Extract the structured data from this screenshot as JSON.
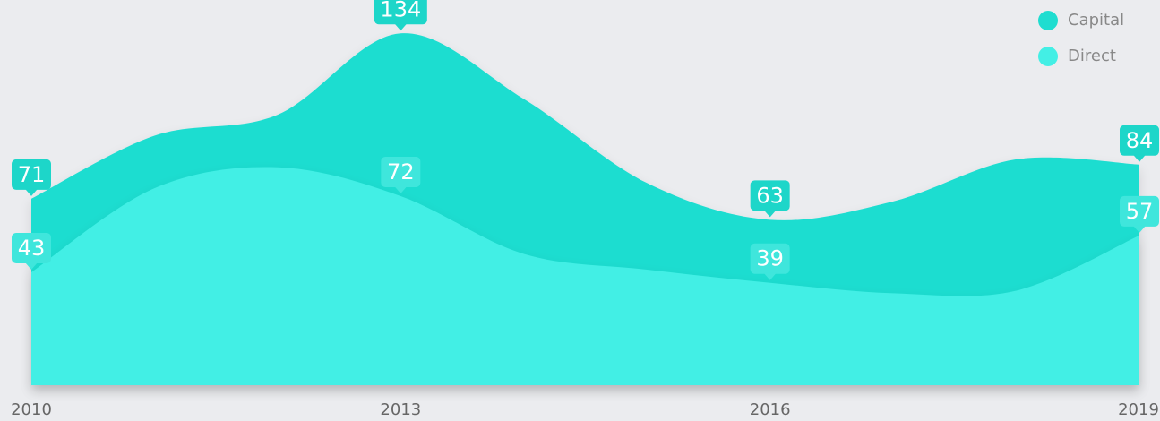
{
  "chart_data": {
    "type": "area",
    "x": [
      2010,
      2011,
      2012,
      2013,
      2014,
      2015,
      2016,
      2017,
      2018,
      2019
    ],
    "xlim": [
      2010,
      2019
    ],
    "xticks": [
      2010,
      2013,
      2016,
      2019
    ],
    "ylim": [
      0,
      145
    ],
    "legend": "top-right",
    "series": [
      {
        "name": "Capital",
        "color": "#1fddd0",
        "label_color": "#1dd6c9",
        "values": [
          71,
          95,
          103,
          134,
          109,
          77,
          63,
          70,
          86,
          84
        ]
      },
      {
        "name": "Direct",
        "color": "#43efe5",
        "label_color": "#3fe6dc",
        "values": [
          43,
          75,
          83,
          72,
          50,
          44,
          39,
          35,
          36,
          57
        ]
      }
    ]
  }
}
